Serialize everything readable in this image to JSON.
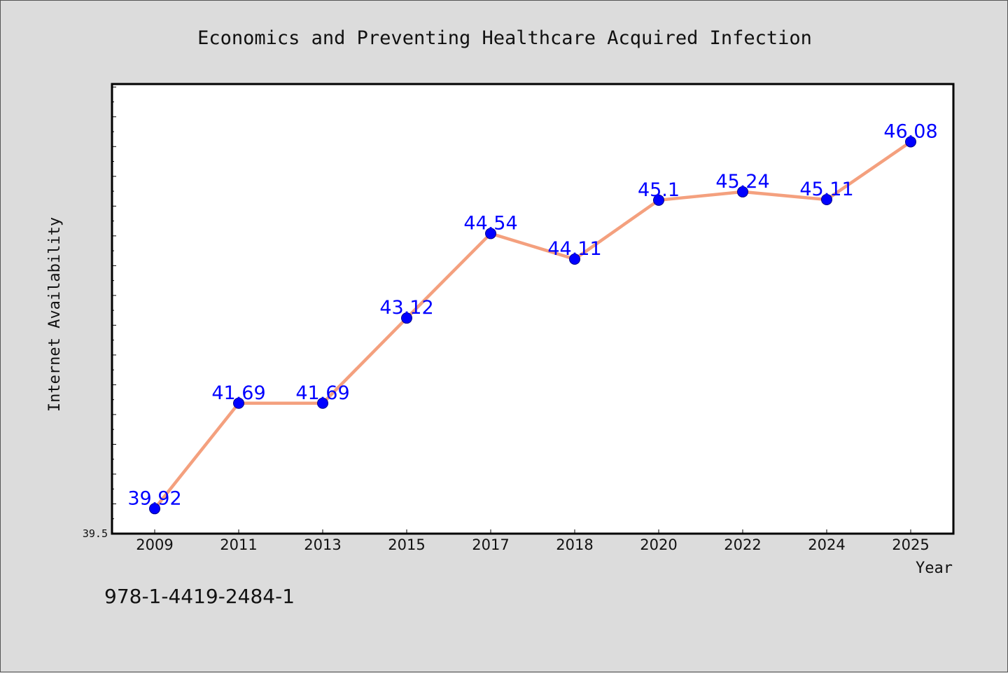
{
  "chart_data": {
    "type": "line",
    "title": "Economics and Preventing Healthcare Acquired Infection",
    "xlabel": "Year",
    "ylabel": "Internet Availability",
    "categories": [
      "2009",
      "2011",
      "2013",
      "2015",
      "2017",
      "2018",
      "2020",
      "2022",
      "2024",
      "2025"
    ],
    "series": [
      {
        "values": [
          39.92,
          41.69,
          41.69,
          43.12,
          44.54,
          44.11,
          45.1,
          45.24,
          45.11,
          46.08
        ],
        "labels": [
          "39.92",
          "41.69",
          "41.69",
          "43.12",
          "44.54",
          "44.11",
          "45.1",
          "45.24",
          "45.11",
          "46.08"
        ]
      }
    ],
    "ylim": [
      39.5,
      47.05
    ],
    "y_tick_labels": [
      "39.5"
    ],
    "grid": false,
    "colors": {
      "line": "#f4a07e",
      "marker": "#0000ff",
      "label": "#0000ff"
    }
  },
  "footer": {
    "isbn": "978-1-4419-2484-1"
  }
}
